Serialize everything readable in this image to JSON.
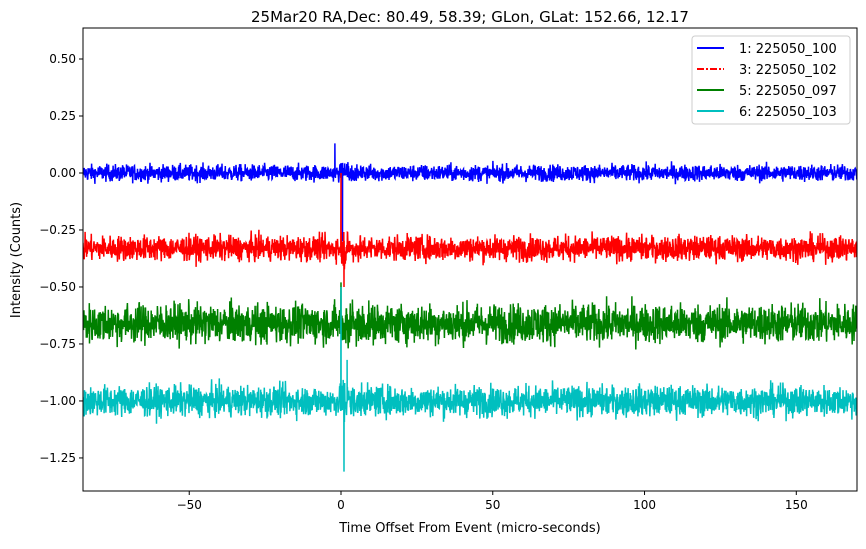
{
  "chart_data": {
    "type": "line",
    "title": "25Mar20 RA,Dec:   80.49,  58.39; GLon, GLat:  152.66,  12.17",
    "xlabel": "Time Offset From Event (micro-seconds)",
    "ylabel": "Intensity (Counts)",
    "xlim": [
      -85,
      170
    ],
    "ylim": [
      -1.395,
      0.636
    ],
    "xticks": [
      -50,
      0,
      50,
      100,
      150
    ],
    "xtick_labels": [
      "−50",
      "0",
      "50",
      "100",
      "150"
    ],
    "yticks": [
      0.5,
      0.25,
      0.0,
      -0.25,
      -0.5,
      -0.75,
      -1.0,
      -1.25
    ],
    "ytick_labels": [
      "0.50",
      "0.25",
      "0.00",
      "−0.25",
      "−0.50",
      "−0.75",
      "−1.00",
      "−1.25"
    ],
    "grid": false,
    "legend_position": "top-right",
    "series": [
      {
        "name": "1: 225050_100",
        "color": "#0000ff",
        "style": "solid",
        "baseline": 0.0,
        "noise": 0.03,
        "events": [
          {
            "x": -2,
            "y": 0.13
          },
          {
            "x": 0.5,
            "y": -0.3
          }
        ]
      },
      {
        "name": "3: 225050_102",
        "color": "#ff0000",
        "style": "dashdot",
        "baseline": -0.33,
        "noise": 0.045,
        "events": [
          {
            "x": 0,
            "y": -0.0
          },
          {
            "x": 1,
            "y": -0.5
          }
        ]
      },
      {
        "name": "5: 225050_097",
        "color": "#008000",
        "style": "solid",
        "baseline": -0.66,
        "noise": 0.07,
        "events": [
          {
            "x": 0,
            "y": -0.48
          }
        ]
      },
      {
        "name": "6: 225050_103",
        "color": "#00bfbf",
        "style": "solid",
        "baseline": -1.0,
        "noise": 0.055,
        "events": [
          {
            "x": 0,
            "y": -0.5
          },
          {
            "x": 1,
            "y": -1.31
          },
          {
            "x": 2,
            "y": -0.82
          }
        ]
      }
    ]
  }
}
